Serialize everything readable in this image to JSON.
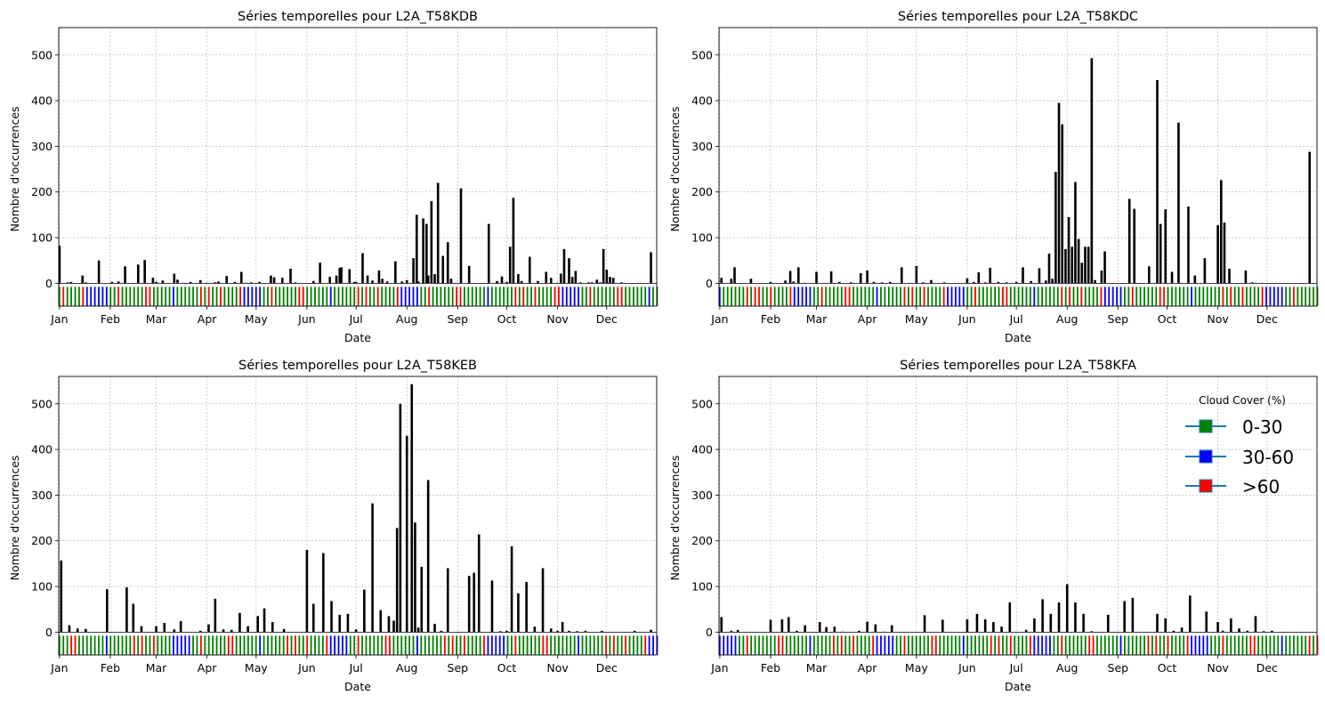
{
  "figure": {
    "legend": {
      "title": "Cloud Cover (%)",
      "position": "upper-right of panel 4",
      "entries": [
        {
          "label": "0-30",
          "color": "#008000"
        },
        {
          "label": "30-60",
          "color": "#0000ff"
        },
        {
          "label": ">60",
          "color": "#ff0000"
        }
      ],
      "line_color": "#1f77b4"
    },
    "colors": {
      "bars": "#000000",
      "grid": "#b0b0b0",
      "cloud_0_30": "#008000",
      "cloud_30_60": "#0000ff",
      "cloud_gt60": "#ff0000"
    }
  },
  "chart_data": [
    {
      "type": "bar",
      "title": "Séries temporelles pour L2A_T58KDB",
      "xlabel": "Date",
      "ylabel": "Nombre d'occurrences",
      "ylim": [
        -50,
        560
      ],
      "yticks": [
        0,
        100,
        200,
        300,
        400,
        500
      ],
      "xticks": [
        "Jan",
        "Feb",
        "Mar",
        "Apr",
        "May",
        "Jun",
        "Jul",
        "Aug",
        "Sep",
        "Oct",
        "Nov",
        "Dec"
      ],
      "grid": true,
      "x": [
        "Jan 01",
        "Jan 06",
        "Jan 08",
        "Jan 15",
        "Jan 17",
        "Jan 25",
        "Feb 02",
        "Feb 06",
        "Feb 10",
        "Feb 18",
        "Feb 22",
        "Feb 27",
        "Mar 01",
        "Mar 05",
        "Mar 12",
        "Mar 14",
        "Mar 18",
        "Mar 22",
        "Mar 28",
        "Apr 01",
        "Apr 06",
        "Apr 08",
        "Apr 13",
        "Apr 18",
        "Apr 22",
        "Apr 25",
        "Apr 28",
        "May 03",
        "May 10",
        "May 12",
        "May 17",
        "May 22",
        "May 25",
        "Jun 05",
        "Jun 09",
        "Jun 15",
        "Jun 19",
        "Jun 21",
        "Jun 22",
        "Jun 27",
        "Jun 30",
        "Jul 01",
        "Jul 05",
        "Jul 08",
        "Jul 11",
        "Jul 15",
        "Jul 17",
        "Jul 20",
        "Jul 25",
        "Jul 29",
        "Aug 01",
        "Aug 05",
        "Aug 07",
        "Aug 08",
        "Aug 11",
        "Aug 13",
        "Aug 14",
        "Aug 16",
        "Aug 18",
        "Aug 20",
        "Aug 23",
        "Aug 26",
        "Aug 28",
        "Sep 03",
        "Sep 08",
        "Sep 20",
        "Sep 25",
        "Sep 28",
        "Oct 01",
        "Oct 03",
        "Oct 05",
        "Oct 08",
        "Oct 10",
        "Oct 15",
        "Oct 20",
        "Oct 25",
        "Oct 28",
        "Nov 01",
        "Nov 03",
        "Nov 05",
        "Nov 08",
        "Nov 10",
        "Nov 12",
        "Nov 15",
        "Nov 20",
        "Nov 22",
        "Nov 25",
        "Nov 27",
        "Nov 29",
        "Dec 01",
        "Dec 03",
        "Dec 05",
        "Dec 10",
        "Dec 28"
      ],
      "values": [
        82,
        2,
        3,
        17,
        2,
        50,
        3,
        4,
        37,
        41,
        51,
        12,
        3,
        6,
        21,
        8,
        1,
        3,
        7,
        1,
        2,
        4,
        16,
        3,
        25,
        1,
        2,
        3,
        17,
        13,
        12,
        32,
        2,
        5,
        45,
        14,
        17,
        34,
        35,
        31,
        3,
        3,
        66,
        17,
        6,
        28,
        10,
        4,
        48,
        4,
        7,
        55,
        150,
        4,
        142,
        130,
        17,
        180,
        20,
        220,
        60,
        90,
        10,
        208,
        38,
        130,
        5,
        15,
        3,
        80,
        187,
        20,
        5,
        58,
        5,
        25,
        12,
        1,
        21,
        75,
        55,
        14,
        27,
        2,
        2,
        2,
        8,
        2,
        75,
        30,
        14,
        12,
        2,
        68
      ]
    },
    {
      "type": "bar",
      "title": "Séries temporelles pour L2A_T58KDC",
      "xlabel": "Date",
      "ylabel": "Nombre d'occurrences",
      "ylim": [
        -50,
        560
      ],
      "yticks": [
        0,
        100,
        200,
        300,
        400,
        500
      ],
      "xticks": [
        "Jan",
        "Feb",
        "Mar",
        "Apr",
        "May",
        "Jun",
        "Jul",
        "Aug",
        "Sep",
        "Oct",
        "Nov",
        "Dec"
      ],
      "grid": true,
      "x": [
        "Jan 02",
        "Jan 08",
        "Jan 10",
        "Jan 20",
        "Feb 01",
        "Feb 10",
        "Feb 13",
        "Feb 15",
        "Feb 18",
        "Feb 22",
        "Mar 01",
        "Mar 10",
        "Mar 15",
        "Mar 22",
        "Mar 28",
        "Apr 01",
        "Apr 05",
        "Apr 10",
        "Apr 15",
        "Apr 22",
        "Apr 27",
        "May 01",
        "May 05",
        "May 10",
        "May 18",
        "Jun 01",
        "Jun 05",
        "Jun 08",
        "Jun 12",
        "Jun 15",
        "Jun 20",
        "Jun 25",
        "Jul 01",
        "Jul 05",
        "Jul 10",
        "Jul 15",
        "Jul 19",
        "Jul 21",
        "Jul 23",
        "Jul 25",
        "Jul 27",
        "Jul 29",
        "Jul 31",
        "Aug 02",
        "Aug 04",
        "Aug 06",
        "Aug 08",
        "Aug 10",
        "Aug 12",
        "Aug 14",
        "Aug 16",
        "Aug 18",
        "Aug 22",
        "Aug 24",
        "Sep 08",
        "Sep 11",
        "Sep 20",
        "Sep 25",
        "Sep 27",
        "Sep 30",
        "Oct 04",
        "Oct 08",
        "Oct 14",
        "Oct 18",
        "Oct 24",
        "Nov 01",
        "Nov 03",
        "Nov 05",
        "Nov 08",
        "Nov 18",
        "Nov 22",
        "Nov 24",
        "Nov 28",
        "Dec 27"
      ],
      "values": [
        12,
        10,
        35,
        10,
        3,
        6,
        27,
        4,
        35,
        1,
        25,
        26,
        3,
        2,
        22,
        28,
        3,
        2,
        3,
        35,
        1,
        38,
        2,
        7,
        2,
        11,
        3,
        24,
        2,
        34,
        3,
        2,
        3,
        35,
        5,
        33,
        6,
        65,
        10,
        244,
        395,
        348,
        75,
        145,
        80,
        222,
        97,
        45,
        80,
        80,
        493,
        7,
        28,
        70,
        185,
        163,
        37,
        445,
        130,
        162,
        25,
        352,
        168,
        17,
        55,
        127,
        226,
        133,
        32,
        28,
        2,
        1,
        1,
        288
      ]
    },
    {
      "type": "bar",
      "title": "Séries temporelles pour L2A_T58KEB",
      "xlabel": "Date",
      "ylabel": "Nombre d'occurrences",
      "ylim": [
        -50,
        560
      ],
      "yticks": [
        0,
        100,
        200,
        300,
        400,
        500
      ],
      "xticks": [
        "Jan",
        "Feb",
        "Mar",
        "Apr",
        "May",
        "Jun",
        "Jul",
        "Aug",
        "Sep",
        "Oct",
        "Nov",
        "Dec"
      ],
      "grid": true,
      "x": [
        "Jan 02",
        "Jan 07",
        "Jan 12",
        "Jan 17",
        "Jan 30",
        "Feb 11",
        "Feb 15",
        "Feb 20",
        "Mar 01",
        "Mar 06",
        "Mar 12",
        "Mar 16",
        "Mar 28",
        "Apr 02",
        "Apr 06",
        "Apr 11",
        "Apr 16",
        "Apr 21",
        "Apr 26",
        "May 02",
        "May 06",
        "May 11",
        "May 18",
        "Jun 01",
        "Jun 05",
        "Jun 11",
        "Jun 16",
        "Jun 21",
        "Jun 26",
        "Jul 01",
        "Jul 06",
        "Jul 11",
        "Jul 16",
        "Jul 21",
        "Jul 24",
        "Jul 26",
        "Jul 28",
        "Aug 01",
        "Aug 04",
        "Aug 06",
        "Aug 08",
        "Aug 10",
        "Aug 14",
        "Aug 18",
        "Aug 22",
        "Aug 26",
        "Sep 08",
        "Sep 11",
        "Sep 14",
        "Sep 22",
        "Sep 27",
        "Oct 01",
        "Oct 04",
        "Oct 08",
        "Oct 13",
        "Oct 18",
        "Oct 23",
        "Oct 28",
        "Nov 01",
        "Nov 04",
        "Nov 08",
        "Nov 13",
        "Nov 18",
        "Nov 28",
        "Dec 18",
        "Dec 28"
      ],
      "values": [
        157,
        15,
        8,
        7,
        94,
        98,
        62,
        13,
        13,
        20,
        6,
        24,
        3,
        17,
        73,
        6,
        5,
        42,
        13,
        35,
        52,
        22,
        7,
        180,
        62,
        173,
        68,
        38,
        40,
        6,
        93,
        282,
        48,
        35,
        25,
        228,
        500,
        430,
        543,
        240,
        10,
        143,
        333,
        18,
        3,
        140,
        123,
        130,
        214,
        113,
        2,
        3,
        188,
        85,
        110,
        12,
        140,
        8,
        3,
        22,
        3,
        2,
        3,
        3,
        3,
        5
      ]
    },
    {
      "type": "bar",
      "title": "Séries temporelles pour L2A_T58KFA",
      "xlabel": "Date",
      "ylabel": "Nombre d'occurrences",
      "ylim": [
        -50,
        560
      ],
      "yticks": [
        0,
        100,
        200,
        300,
        400,
        500
      ],
      "xticks": [
        "Jan",
        "Feb",
        "Mar",
        "Apr",
        "May",
        "Jun",
        "Jul",
        "Aug",
        "Sep",
        "Oct",
        "Nov",
        "Dec"
      ],
      "grid": true,
      "x": [
        "Jan 02",
        "Jan 08",
        "Jan 12",
        "Feb 01",
        "Feb 08",
        "Feb 12",
        "Feb 17",
        "Feb 22",
        "Mar 03",
        "Mar 07",
        "Mar 12",
        "Mar 17",
        "Mar 27",
        "Apr 01",
        "Apr 06",
        "Apr 11",
        "Apr 16",
        "May 06",
        "May 17",
        "Jun 01",
        "Jun 07",
        "Jun 12",
        "Jun 17",
        "Jun 22",
        "Jun 27",
        "Jul 07",
        "Jul 12",
        "Jul 17",
        "Jul 22",
        "Jul 27",
        "Aug 01",
        "Aug 06",
        "Aug 11",
        "Aug 16",
        "Aug 26",
        "Sep 05",
        "Sep 10",
        "Sep 25",
        "Sep 30",
        "Oct 05",
        "Oct 10",
        "Oct 15",
        "Oct 25",
        "Nov 01",
        "Nov 04",
        "Nov 09",
        "Nov 14",
        "Nov 19",
        "Nov 24",
        "Nov 29",
        "Dec 04"
      ],
      "values": [
        33,
        3,
        5,
        27,
        28,
        33,
        3,
        15,
        22,
        11,
        12,
        1,
        3,
        23,
        17,
        1,
        15,
        37,
        27,
        28,
        40,
        28,
        22,
        12,
        65,
        5,
        30,
        72,
        40,
        65,
        105,
        65,
        40,
        2,
        38,
        68,
        75,
        40,
        30,
        3,
        10,
        80,
        45,
        22,
        3,
        30,
        8,
        3,
        35,
        2,
        3
      ]
    }
  ]
}
